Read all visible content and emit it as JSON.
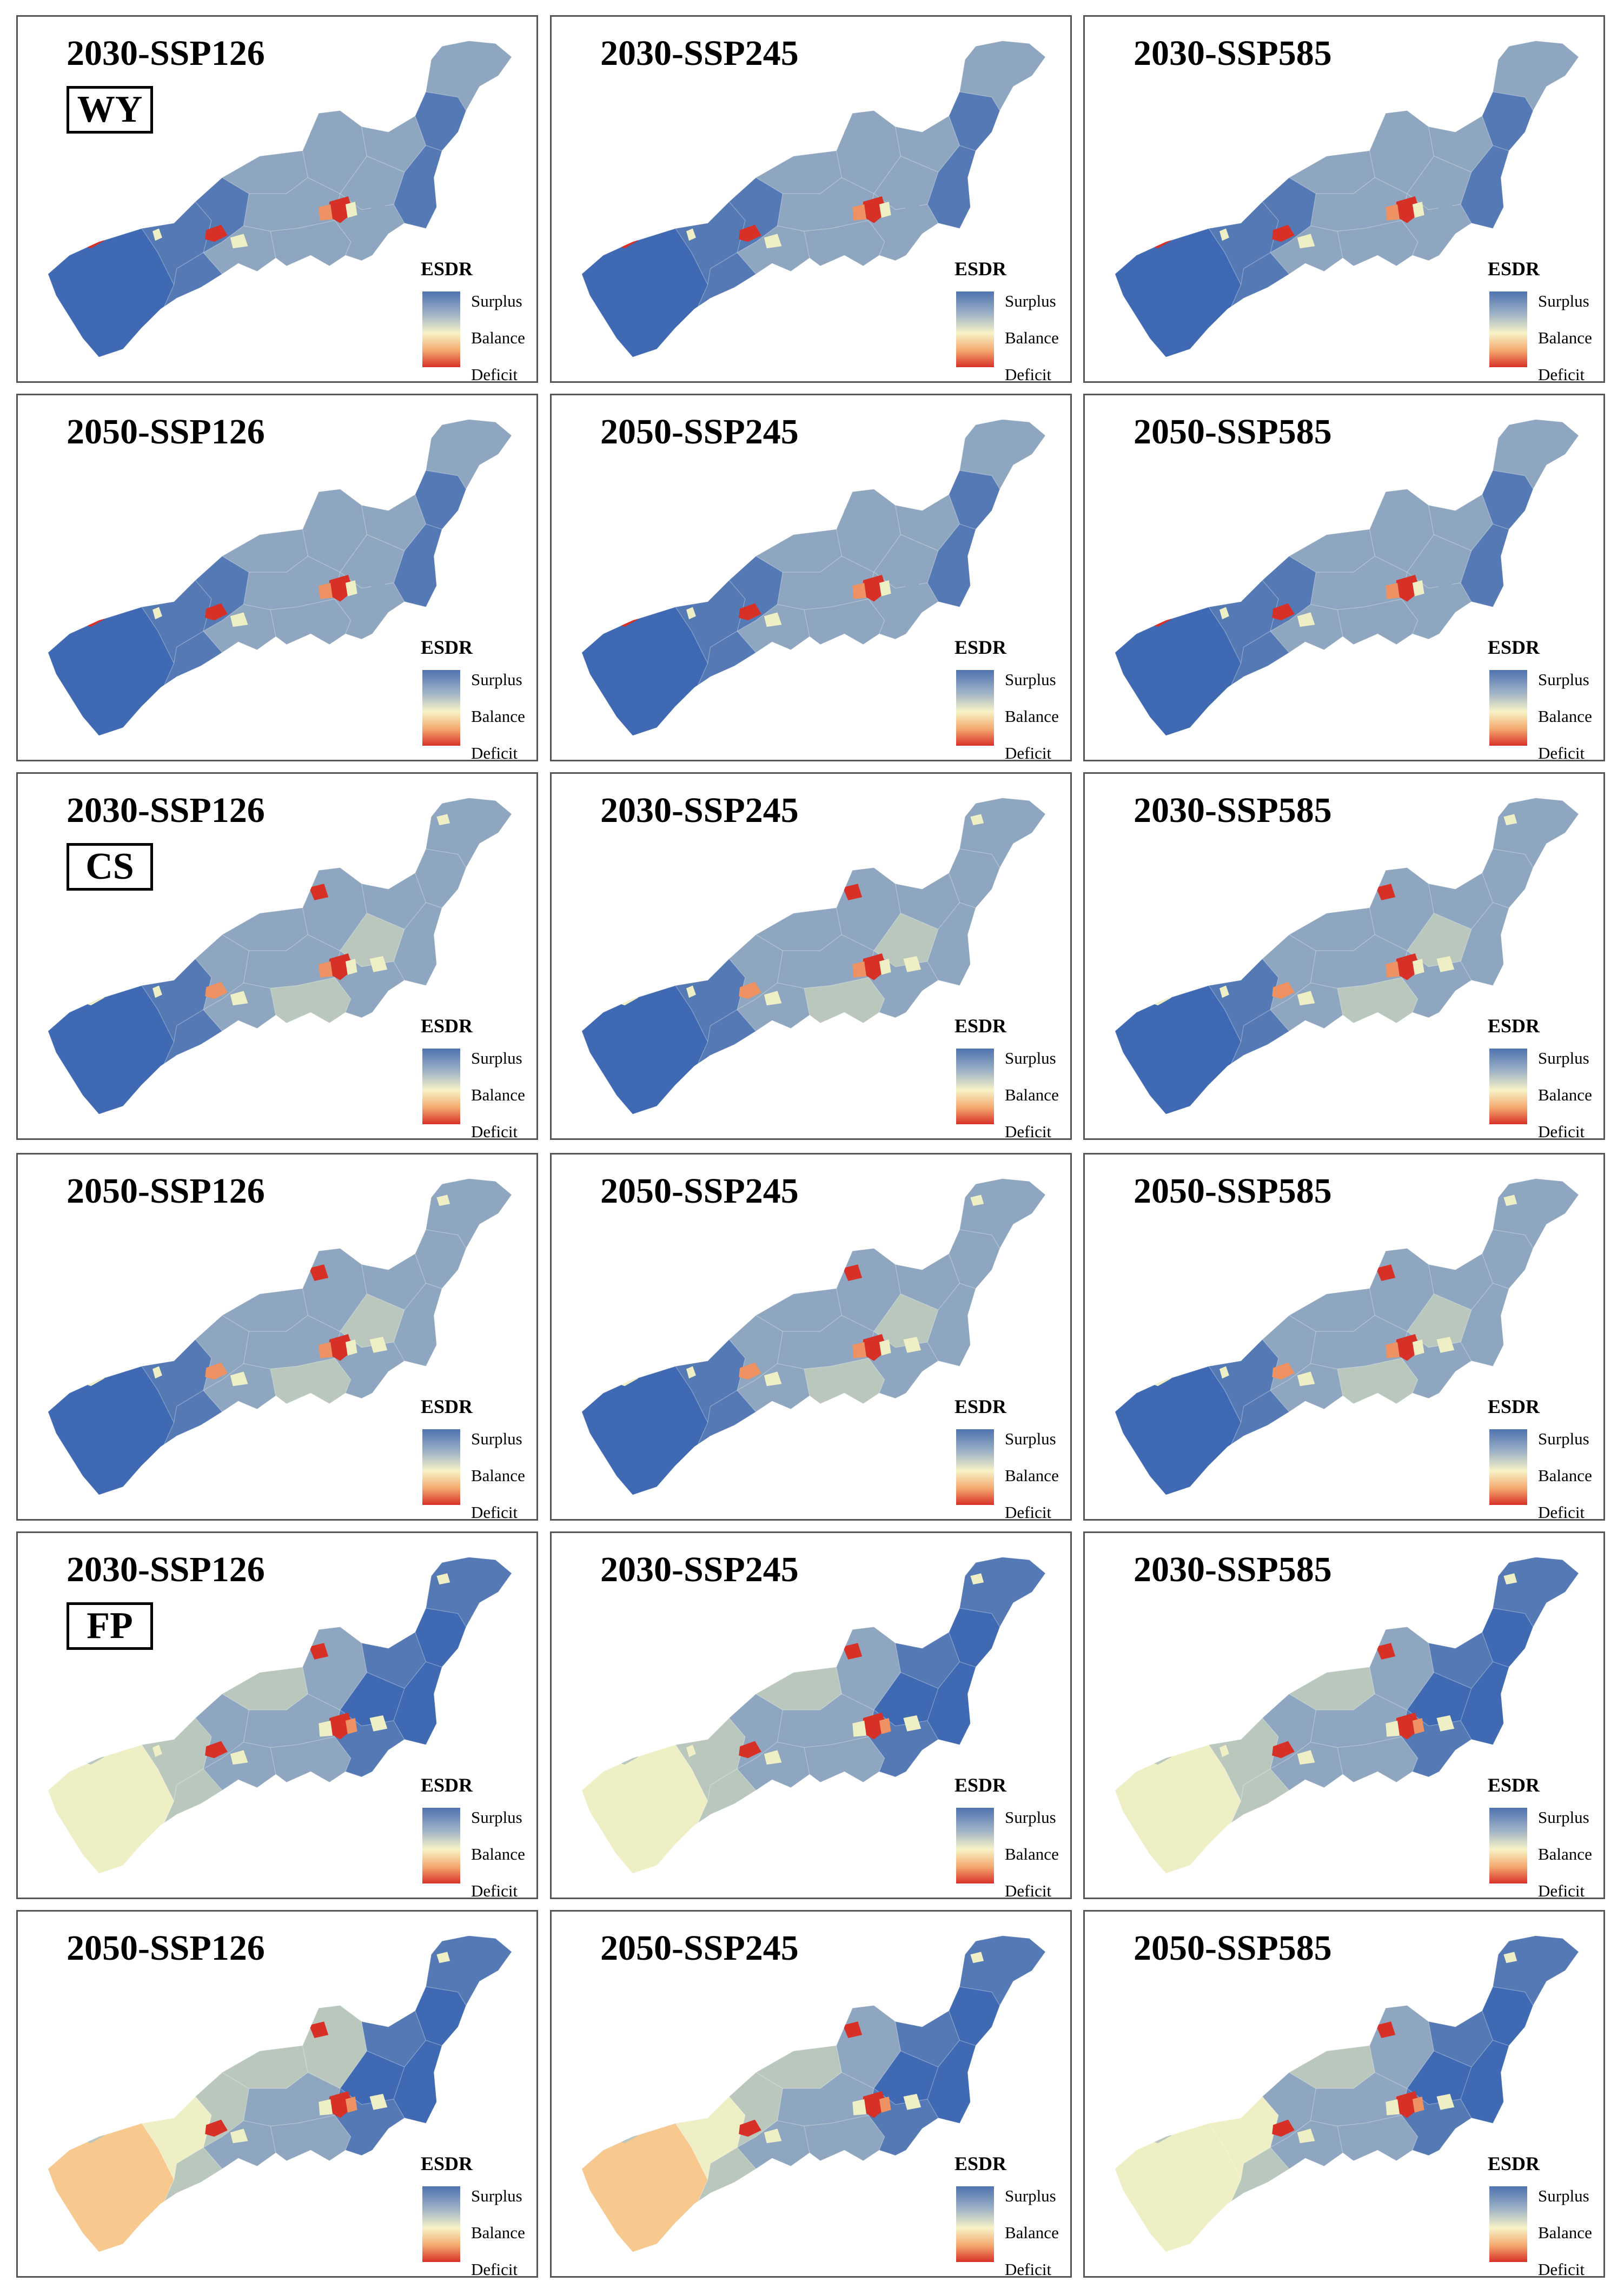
{
  "legend": {
    "title": "ESDR",
    "labels": [
      "Surplus",
      "Balance",
      "Deficit"
    ],
    "colors": [
      "#4f73b0",
      "#f7f3c6",
      "#d73027"
    ]
  },
  "palette": {
    "blue_dark": "#3f69b2",
    "blue": "#5579b4",
    "blue_grey": "#8ea6bf",
    "grey_green": "#b9c7bd",
    "pale_yellow": "#efefc6",
    "light_orange": "#f7c98f",
    "orange": "#ee9263",
    "red": "#d73027"
  },
  "panels": [
    {
      "title": "2030-SSP126",
      "tag": "WY",
      "pattern": "wy"
    },
    {
      "title": "2030-SSP245",
      "tag": "",
      "pattern": "wy"
    },
    {
      "title": "2030-SSP585",
      "tag": "",
      "pattern": "wy"
    },
    {
      "title": "2050-SSP126",
      "tag": "",
      "pattern": "wy"
    },
    {
      "title": "2050-SSP245",
      "tag": "",
      "pattern": "wy"
    },
    {
      "title": "2050-SSP585",
      "tag": "",
      "pattern": "wy"
    },
    {
      "title": "2030-SSP126",
      "tag": "CS",
      "pattern": "cs"
    },
    {
      "title": "2030-SSP245",
      "tag": "",
      "pattern": "cs"
    },
    {
      "title": "2030-SSP585",
      "tag": "",
      "pattern": "cs"
    },
    {
      "title": "2050-SSP126",
      "tag": "",
      "pattern": "cs"
    },
    {
      "title": "2050-SSP245",
      "tag": "",
      "pattern": "cs"
    },
    {
      "title": "2050-SSP585",
      "tag": "",
      "pattern": "cs"
    },
    {
      "title": "2030-SSP126",
      "tag": "FP",
      "pattern": "fp30"
    },
    {
      "title": "2030-SSP245",
      "tag": "",
      "pattern": "fp30"
    },
    {
      "title": "2030-SSP585",
      "tag": "",
      "pattern": "fp30"
    },
    {
      "title": "2050-SSP126",
      "tag": "",
      "pattern": "fp50a"
    },
    {
      "title": "2050-SSP245",
      "tag": "",
      "pattern": "fp50b"
    },
    {
      "title": "2050-SSP585",
      "tag": "",
      "pattern": "fp50c"
    }
  ]
}
